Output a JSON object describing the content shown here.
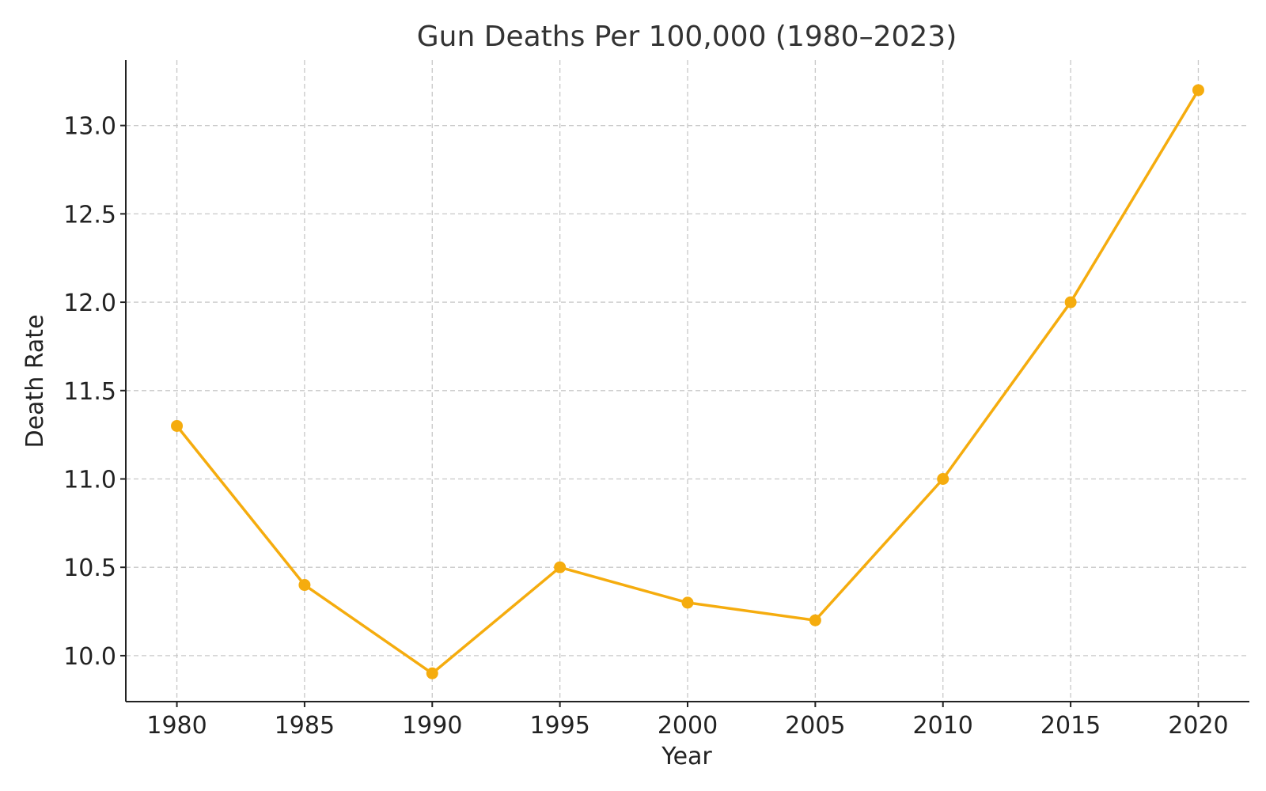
{
  "chart_data": {
    "type": "line",
    "title": "Gun Deaths Per 100,000 (1980–2023)",
    "xlabel": "Year",
    "ylabel": "Death Rate",
    "x": [
      1980,
      1985,
      1990,
      1995,
      2000,
      2005,
      2010,
      2015,
      2020
    ],
    "series": [
      {
        "values": [
          11.3,
          10.4,
          9.9,
          10.5,
          10.3,
          10.2,
          11.0,
          12.0,
          13.2
        ],
        "color": "#f5ac0e"
      }
    ],
    "xlim": [
      1978,
      2022
    ],
    "ylim": [
      9.74,
      13.37
    ],
    "xticks": [
      "1980",
      "1985",
      "1990",
      "1995",
      "2000",
      "2005",
      "2010",
      "2015",
      "2020"
    ],
    "yticks": [
      "10.0",
      "10.5",
      "11.0",
      "11.5",
      "12.0",
      "12.5",
      "13.0"
    ],
    "grid": true,
    "legend": "none"
  }
}
